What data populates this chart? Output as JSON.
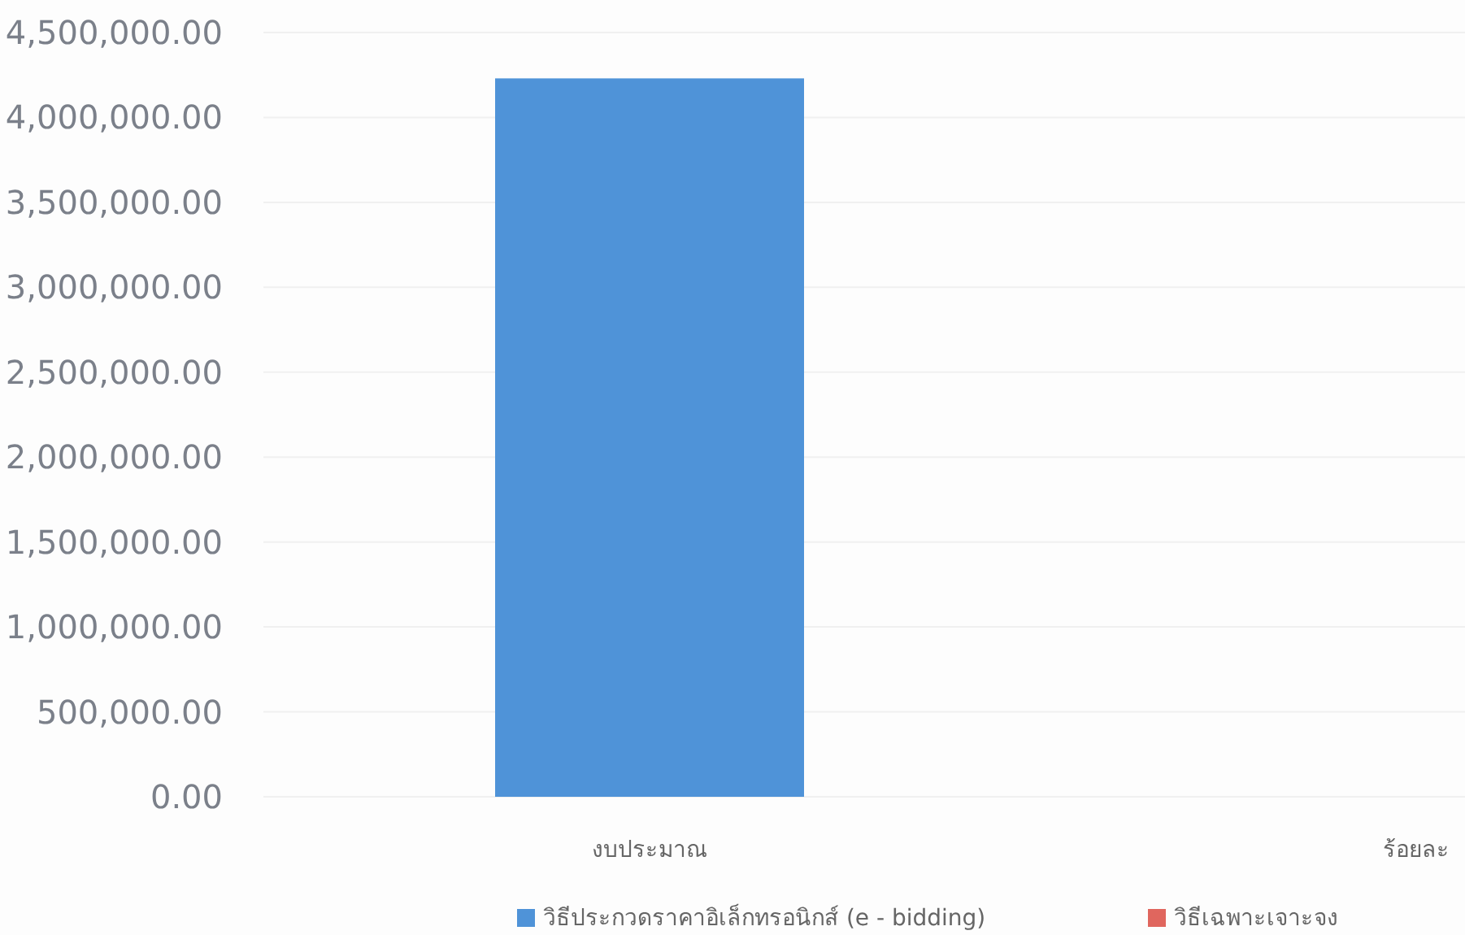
{
  "chart_data": {
    "type": "bar",
    "categories": [
      "งบประมาณ",
      "ร้อยละ"
    ],
    "series": [
      {
        "name": "วิธีประกวดราคาอิเล็กทรอนิกส์ (e - bidding)",
        "color": "#4f93d8",
        "values": [
          4230000,
          null
        ]
      },
      {
        "name": "วิธีเฉพาะเจาะจง",
        "color": "#e0665e",
        "values": [
          null,
          null
        ]
      }
    ],
    "ylim": [
      0,
      4500000
    ],
    "yticks": [
      {
        "value": 0,
        "label": "0.00"
      },
      {
        "value": 500000,
        "label": "500,000.00"
      },
      {
        "value": 1000000,
        "label": "1,000,000.00"
      },
      {
        "value": 1500000,
        "label": "1,500,000.00"
      },
      {
        "value": 2000000,
        "label": "2,000,000.00"
      },
      {
        "value": 2500000,
        "label": "2,500,000.00"
      },
      {
        "value": 3000000,
        "label": "3,000,000.00"
      },
      {
        "value": 3500000,
        "label": "3,500,000.00"
      },
      {
        "value": 4000000,
        "label": "4,000,000.00"
      },
      {
        "value": 4500000,
        "label": "4,500,000.00"
      }
    ],
    "grid": "y",
    "legend": "bottom"
  }
}
